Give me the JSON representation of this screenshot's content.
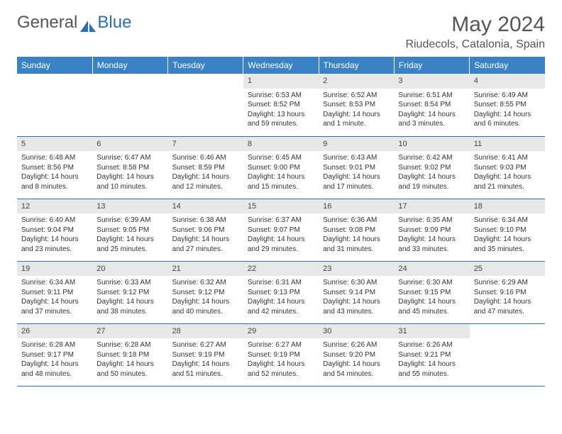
{
  "brand": {
    "part1": "General",
    "part2": "Blue"
  },
  "title": "May 2024",
  "location": "Riudecols, Catalonia, Spain",
  "colors": {
    "header_bg": "#3b82c4",
    "border": "#2a6fb5",
    "daynum_bg": "#e8e8e8",
    "text": "#333333"
  },
  "weekdays": [
    "Sunday",
    "Monday",
    "Tuesday",
    "Wednesday",
    "Thursday",
    "Friday",
    "Saturday"
  ],
  "weeks": [
    [
      null,
      null,
      null,
      {
        "n": "1",
        "sr": "6:53 AM",
        "ss": "8:52 PM",
        "dl": "13 hours and 59 minutes."
      },
      {
        "n": "2",
        "sr": "6:52 AM",
        "ss": "8:53 PM",
        "dl": "14 hours and 1 minute."
      },
      {
        "n": "3",
        "sr": "6:51 AM",
        "ss": "8:54 PM",
        "dl": "14 hours and 3 minutes."
      },
      {
        "n": "4",
        "sr": "6:49 AM",
        "ss": "8:55 PM",
        "dl": "14 hours and 6 minutes."
      }
    ],
    [
      {
        "n": "5",
        "sr": "6:48 AM",
        "ss": "8:56 PM",
        "dl": "14 hours and 8 minutes."
      },
      {
        "n": "6",
        "sr": "6:47 AM",
        "ss": "8:58 PM",
        "dl": "14 hours and 10 minutes."
      },
      {
        "n": "7",
        "sr": "6:46 AM",
        "ss": "8:59 PM",
        "dl": "14 hours and 12 minutes."
      },
      {
        "n": "8",
        "sr": "6:45 AM",
        "ss": "9:00 PM",
        "dl": "14 hours and 15 minutes."
      },
      {
        "n": "9",
        "sr": "6:43 AM",
        "ss": "9:01 PM",
        "dl": "14 hours and 17 minutes."
      },
      {
        "n": "10",
        "sr": "6:42 AM",
        "ss": "9:02 PM",
        "dl": "14 hours and 19 minutes."
      },
      {
        "n": "11",
        "sr": "6:41 AM",
        "ss": "9:03 PM",
        "dl": "14 hours and 21 minutes."
      }
    ],
    [
      {
        "n": "12",
        "sr": "6:40 AM",
        "ss": "9:04 PM",
        "dl": "14 hours and 23 minutes."
      },
      {
        "n": "13",
        "sr": "6:39 AM",
        "ss": "9:05 PM",
        "dl": "14 hours and 25 minutes."
      },
      {
        "n": "14",
        "sr": "6:38 AM",
        "ss": "9:06 PM",
        "dl": "14 hours and 27 minutes."
      },
      {
        "n": "15",
        "sr": "6:37 AM",
        "ss": "9:07 PM",
        "dl": "14 hours and 29 minutes."
      },
      {
        "n": "16",
        "sr": "6:36 AM",
        "ss": "9:08 PM",
        "dl": "14 hours and 31 minutes."
      },
      {
        "n": "17",
        "sr": "6:35 AM",
        "ss": "9:09 PM",
        "dl": "14 hours and 33 minutes."
      },
      {
        "n": "18",
        "sr": "6:34 AM",
        "ss": "9:10 PM",
        "dl": "14 hours and 35 minutes."
      }
    ],
    [
      {
        "n": "19",
        "sr": "6:34 AM",
        "ss": "9:11 PM",
        "dl": "14 hours and 37 minutes."
      },
      {
        "n": "20",
        "sr": "6:33 AM",
        "ss": "9:12 PM",
        "dl": "14 hours and 38 minutes."
      },
      {
        "n": "21",
        "sr": "6:32 AM",
        "ss": "9:12 PM",
        "dl": "14 hours and 40 minutes."
      },
      {
        "n": "22",
        "sr": "6:31 AM",
        "ss": "9:13 PM",
        "dl": "14 hours and 42 minutes."
      },
      {
        "n": "23",
        "sr": "6:30 AM",
        "ss": "9:14 PM",
        "dl": "14 hours and 43 minutes."
      },
      {
        "n": "24",
        "sr": "6:30 AM",
        "ss": "9:15 PM",
        "dl": "14 hours and 45 minutes."
      },
      {
        "n": "25",
        "sr": "6:29 AM",
        "ss": "9:16 PM",
        "dl": "14 hours and 47 minutes."
      }
    ],
    [
      {
        "n": "26",
        "sr": "6:28 AM",
        "ss": "9:17 PM",
        "dl": "14 hours and 48 minutes."
      },
      {
        "n": "27",
        "sr": "6:28 AM",
        "ss": "9:18 PM",
        "dl": "14 hours and 50 minutes."
      },
      {
        "n": "28",
        "sr": "6:27 AM",
        "ss": "9:19 PM",
        "dl": "14 hours and 51 minutes."
      },
      {
        "n": "29",
        "sr": "6:27 AM",
        "ss": "9:19 PM",
        "dl": "14 hours and 52 minutes."
      },
      {
        "n": "30",
        "sr": "6:26 AM",
        "ss": "9:20 PM",
        "dl": "14 hours and 54 minutes."
      },
      {
        "n": "31",
        "sr": "6:26 AM",
        "ss": "9:21 PM",
        "dl": "14 hours and 55 minutes."
      },
      null
    ]
  ],
  "labels": {
    "sunrise": "Sunrise:",
    "sunset": "Sunset:",
    "daylight": "Daylight:"
  }
}
